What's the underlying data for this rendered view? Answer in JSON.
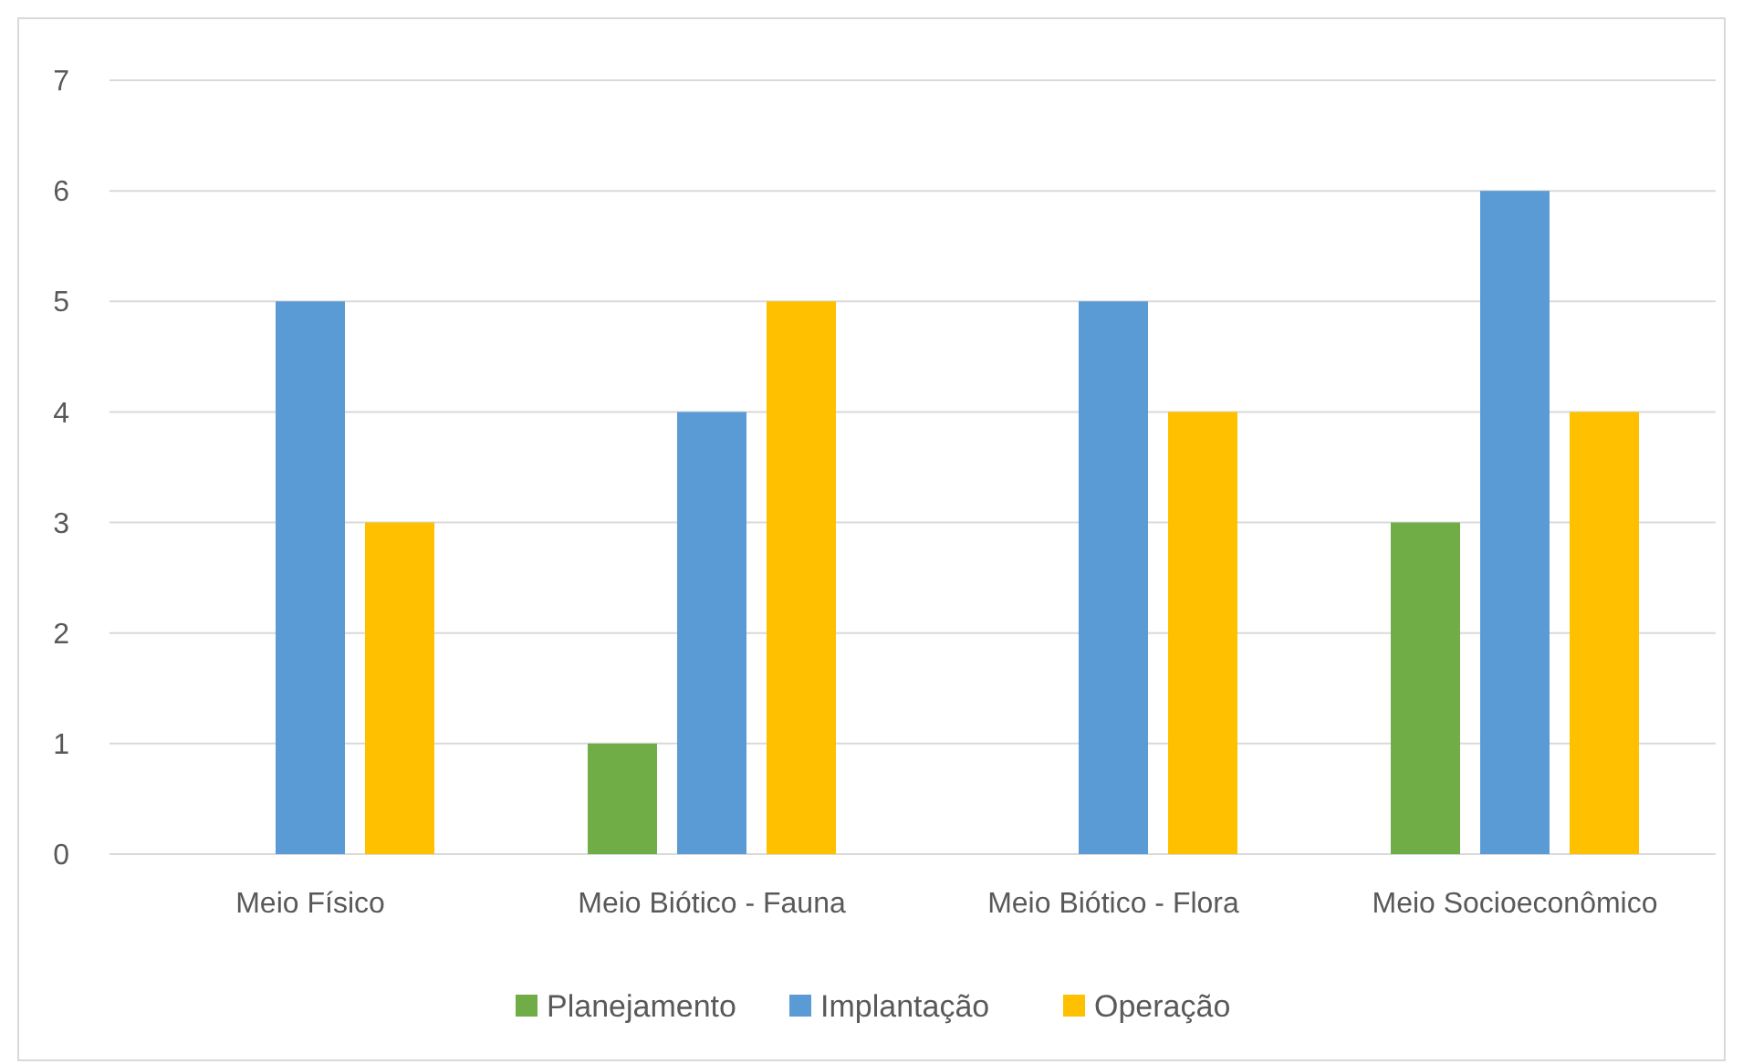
{
  "chart_data": {
    "type": "bar",
    "categories": [
      "Meio Físico",
      "Meio Biótico - Fauna",
      "Meio Biótico - Flora",
      "Meio Socioeconômico"
    ],
    "series": [
      {
        "name": "Planejamento",
        "color": "#70ad47",
        "values": [
          0,
          1,
          0,
          3
        ]
      },
      {
        "name": "Implantação",
        "color": "#5b9bd5",
        "values": [
          5,
          4,
          5,
          6
        ]
      },
      {
        "name": "Operação",
        "color": "#ffc000",
        "values": [
          3,
          5,
          4,
          4
        ]
      }
    ],
    "ylim": [
      0,
      7
    ],
    "yticks": [
      0,
      1,
      2,
      3,
      4,
      5,
      6,
      7
    ],
    "grid": "y",
    "legend": "bottom"
  }
}
